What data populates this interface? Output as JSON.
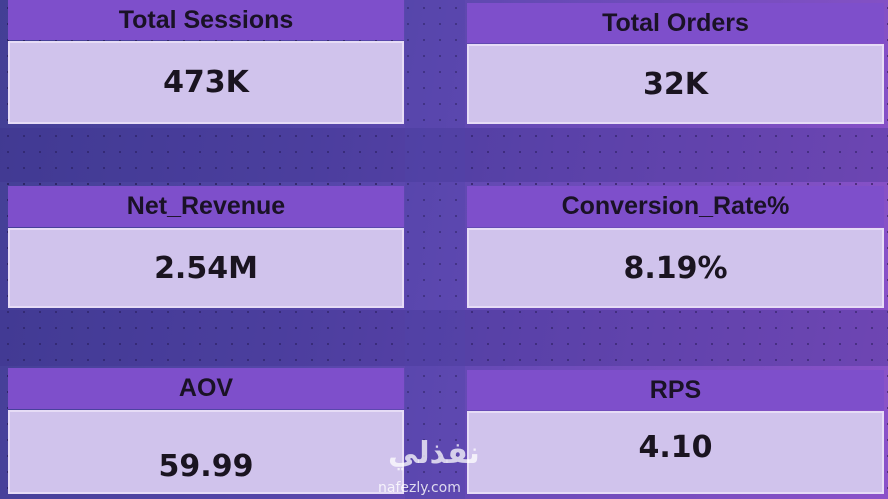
{
  "cards": [
    {
      "title": "Total Sessions",
      "value": "473K"
    },
    {
      "title": "Total Orders",
      "value": "32K"
    },
    {
      "title": "Net_Revenue",
      "value": "2.54M"
    },
    {
      "title": "Conversion_Rate%",
      "value": "8.19%"
    },
    {
      "title": "AOV",
      "value": "59.99"
    },
    {
      "title": "RPS",
      "value": "4.10"
    }
  ],
  "watermark": {
    "logo": "نفذلي",
    "site": "nafezly.com"
  }
}
